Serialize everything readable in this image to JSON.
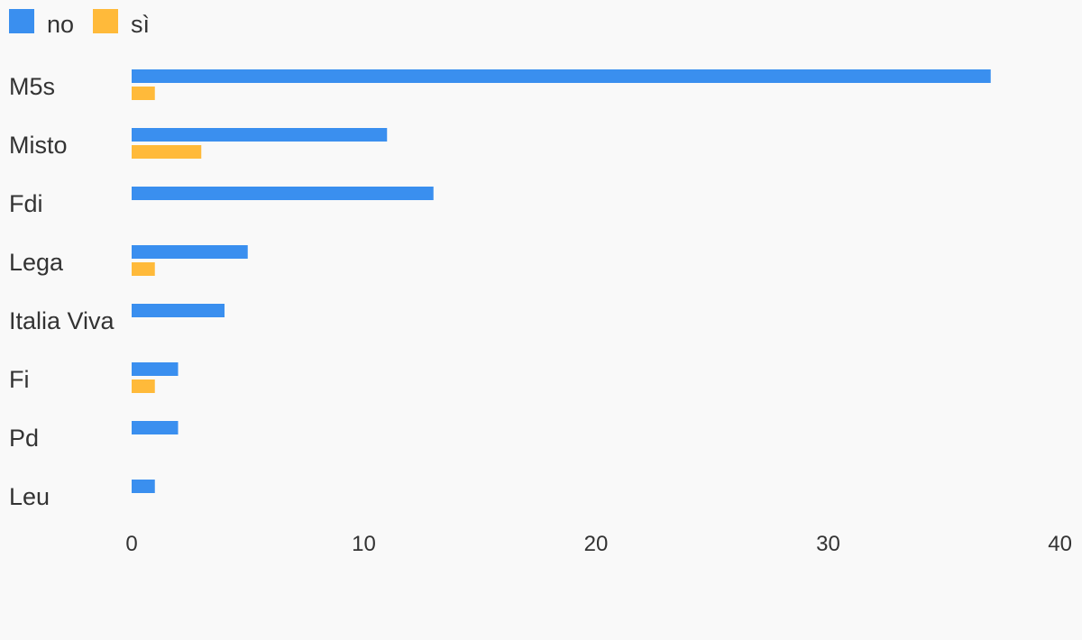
{
  "chart_data": {
    "type": "bar",
    "orientation": "horizontal",
    "categories": [
      "M5s",
      "Misto",
      "Fdi",
      "Lega",
      "Italia Viva",
      "Fi",
      "Pd",
      "Leu"
    ],
    "series": [
      {
        "name": "no",
        "color": "#3a8fef",
        "values": [
          37,
          11,
          13,
          5,
          4,
          2,
          2,
          1
        ]
      },
      {
        "name": "sì",
        "color": "#ffba3a",
        "values": [
          1,
          3,
          0,
          1,
          0,
          1,
          0,
          0
        ]
      }
    ],
    "xlim": [
      0,
      40
    ],
    "xticks": [
      0,
      10,
      20,
      30,
      40
    ],
    "legend": "top-left",
    "grid": false
  }
}
